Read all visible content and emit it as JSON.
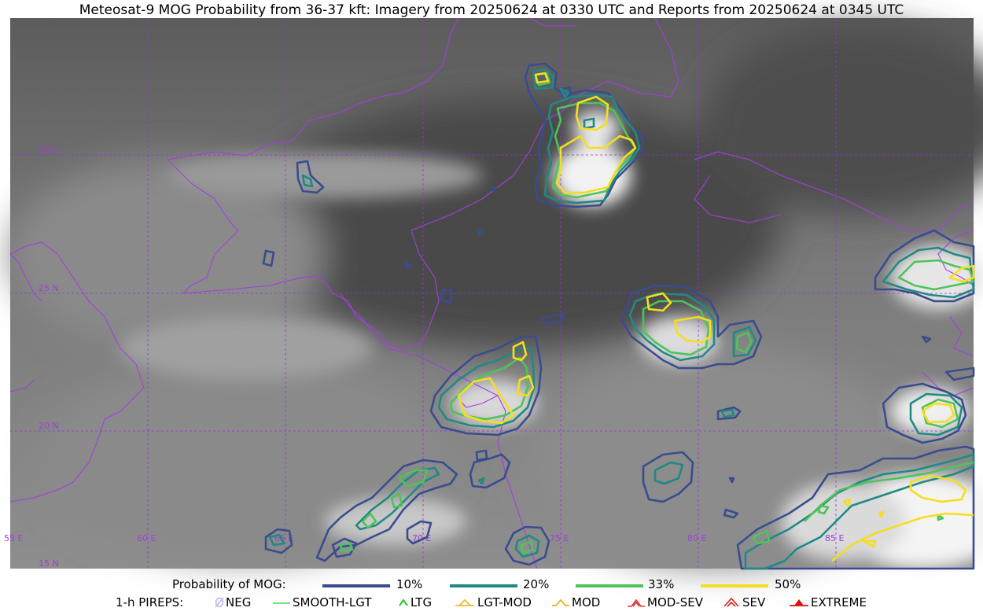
{
  "title": "Meteosat-9 MOG Probability from 36-37 kft: Imagery from 20250624 at 0330 UTC and Reports from 20250624 at 0345 UTC",
  "map": {
    "lon_labels": [
      "55 E",
      "60 E",
      "65 E",
      "70 E",
      "75 E",
      "80 E",
      "85 E"
    ],
    "lat_labels": [
      "30 N",
      "25 N",
      "20 N",
      "15 N"
    ],
    "grid_color": "#9b30d9",
    "border_color": "#a33ee0"
  },
  "legend": {
    "probability_label": "Probability of MOG:",
    "probabilities": [
      {
        "label": "10%",
        "color": "#3a4c8e"
      },
      {
        "label": "20%",
        "color": "#1f8a84"
      },
      {
        "label": "33%",
        "color": "#4fc35a"
      },
      {
        "label": "50%",
        "color": "#f5de1e"
      }
    ],
    "pireps_label": "1-h PIREPS:",
    "pireps": [
      {
        "label": "NEG",
        "icon": "neg-icon",
        "color": "#b8b8ee"
      },
      {
        "label": "SMOOTH-LGT",
        "icon": "smooth-lgt-icon",
        "color": "#44dd44"
      },
      {
        "label": "LTG",
        "icon": "ltg-icon",
        "color": "#22cc22"
      },
      {
        "label": "LGT-MOD",
        "icon": "lgt-mod-icon",
        "color": "#f2b830"
      },
      {
        "label": "MOD",
        "icon": "mod-icon",
        "color": "#f2b020"
      },
      {
        "label": "MOD-SEV",
        "icon": "mod-sev-icon",
        "color": "#e83030"
      },
      {
        "label": "SEV",
        "icon": "sev-icon",
        "color": "#e02020"
      },
      {
        "label": "EXTREME",
        "icon": "extreme-icon",
        "color": "#dd1111"
      }
    ]
  }
}
